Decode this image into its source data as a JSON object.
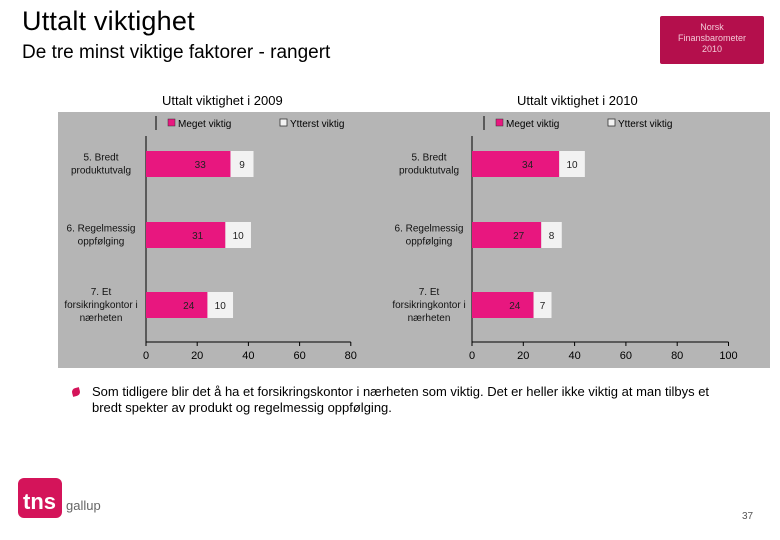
{
  "header": {
    "title": "Uttalt viktighet",
    "subtitle": "De tre minst viktige faktorer - rangert",
    "badge_lines": [
      "Norsk",
      "Finansbarometer",
      "2010"
    ]
  },
  "chart_data": [
    {
      "type": "bar",
      "stacked": true,
      "orientation": "horizontal",
      "title": "Uttalt viktighet i 2009",
      "categories": [
        "5. Bredt produktutvalg",
        "6. Regelmessig oppfølging",
        "7. Et forsikringkontor i nærheten"
      ],
      "category_lines": [
        [
          "5. Bredt",
          "produktutvalg"
        ],
        [
          "6. Regelmessig",
          "oppfølging"
        ],
        [
          "7. Et",
          "forsikringkontor i",
          "nærheten"
        ]
      ],
      "series": [
        {
          "name": "Meget viktig",
          "values": [
            33,
            31,
            24
          ],
          "color": "#e8177f"
        },
        {
          "name": "Ytterst viktig",
          "values": [
            9,
            10,
            10
          ],
          "color": "#f2f2f2"
        }
      ],
      "xlim": [
        0,
        80
      ],
      "xticks": [
        0,
        20,
        40,
        60,
        80
      ],
      "legend": "top",
      "background": "#b5b5b5"
    },
    {
      "type": "bar",
      "stacked": true,
      "orientation": "horizontal",
      "title": "Uttalt viktighet i 2010",
      "categories": [
        "5. Bredt produktutvalg",
        "6. Regelmessig oppfølging",
        "7. Et forsikringkontor i nærheten"
      ],
      "category_lines": [
        [
          "5. Bredt",
          "produktutvalg"
        ],
        [
          "6. Regelmessig",
          "oppfølging"
        ],
        [
          "7. Et",
          "forsikringkontor i",
          "nærheten"
        ]
      ],
      "series": [
        {
          "name": "Meget viktig",
          "values": [
            34,
            27,
            24
          ],
          "color": "#e8177f"
        },
        {
          "name": "Ytterst viktig",
          "values": [
            10,
            8,
            7
          ],
          "color": "#f2f2f2"
        }
      ],
      "xlim": [
        0,
        100
      ],
      "xticks": [
        0,
        20,
        40,
        60,
        80,
        100
      ],
      "legend": "top",
      "background": "#b5b5b5"
    }
  ],
  "commentary": "Som tidligere blir det å ha et forsikringskontor i nærheten som viktig. Det er heller ikke viktig at man tilbys et bredt spekter av produkt og regelmessig oppfølging.",
  "logo": {
    "brand": "tns",
    "sub": "gallup"
  },
  "page_number": "37"
}
